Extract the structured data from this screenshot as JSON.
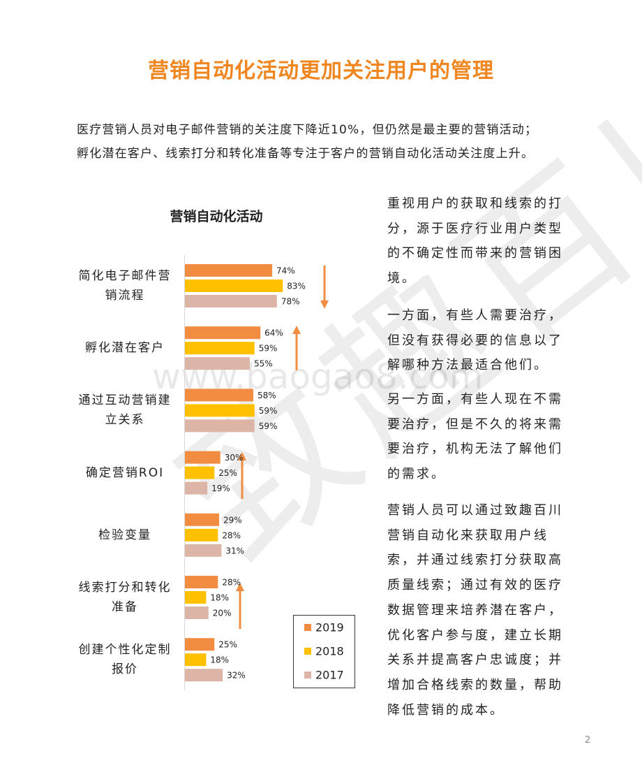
{
  "title": "营销自动化活动更加关注用户的管理",
  "intro": [
    "医疗营销人员对电子邮件营销的关注度下降近10%，但仍然是最主要的营销活动；",
    "孵化潜在客户、线索打分和转化准备等专注于客户的营销自动化活动关注度上升。"
  ],
  "chart_data": {
    "type": "bar",
    "orientation": "horizontal",
    "title": "营销自动化活动",
    "categories": [
      "简化电子邮件营销流程",
      "孵化潜在客户",
      "通过互动营销建立关系",
      "确定营销ROI",
      "检验变量",
      "线索打分和转化准备",
      "创建个性化定制报价"
    ],
    "series": [
      {
        "name": "2019",
        "color": "#f28c40",
        "values": [
          74,
          64,
          58,
          30,
          29,
          28,
          25
        ],
        "value_labels": [
          "74%",
          "64%",
          "58%",
          "30%",
          "29%",
          "28%",
          "25%"
        ]
      },
      {
        "name": "2018",
        "color": "#ffc000",
        "values": [
          83,
          59,
          59,
          25,
          28,
          18,
          18
        ],
        "value_labels": [
          "83%",
          "59%",
          "59%",
          "25%",
          "28%",
          "18%",
          "18%"
        ]
      },
      {
        "name": "2017",
        "color": "#dcb5a6",
        "values": [
          78,
          55,
          59,
          19,
          31,
          20,
          32
        ],
        "value_labels": [
          "78%",
          "55%",
          "59%",
          "19%",
          "31%",
          "20%",
          "32%"
        ]
      }
    ]
  },
  "paragraphs": [
    "重视用户的获取和线索的打分，源于医疗行业用户类型的不确定性而带来的营销困境。",
    "一方面，有些人需要治疗，但没有获得必要的信息以了解哪种方法最适合他们。",
    "另一方面，有些人现在不需要治疗，但是不久的将来需要治疗，机构无法了解他们的需求。",
    "营销人员可以通过致趣百川营销自动化来获取用户线索，并通过线索打分获取高质量线索；通过有效的医疗数据管理来培养潜在客户，优化客户参与度，建立长期关系并提高客户忠诚度；并增加合格线索的数量，帮助降低营销的成本。"
  ],
  "watermark": [
    "www.baogao8.com",
    "致趣百川"
  ],
  "page_number": "2"
}
